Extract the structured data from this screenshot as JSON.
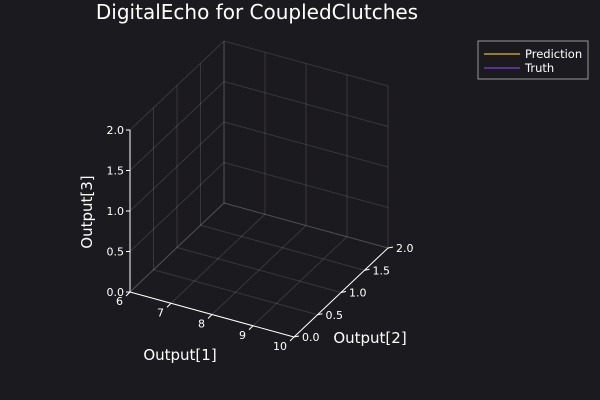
{
  "chart_data": {
    "type": "line",
    "title": "DigitalEcho for CoupledClutches",
    "xlabel": "Output[1]",
    "ylabel": "Output[2]",
    "zlabel": "Output[3]",
    "xlim": [
      6,
      10
    ],
    "ylim": [
      0.0,
      2.0
    ],
    "zlim": [
      0.0,
      2.0
    ],
    "x_ticks": [
      "6",
      "7",
      "8",
      "9",
      "10"
    ],
    "y_ticks": [
      "0.0",
      "0.5",
      "1.0",
      "1.5",
      "2.0"
    ],
    "z_ticks": [
      "0.0",
      "0.5",
      "1.0",
      "1.5",
      "2.0"
    ],
    "legend_position": "top-right",
    "series": [
      {
        "name": "Prediction",
        "color": "#e2b33c",
        "points": []
      },
      {
        "name": "Truth",
        "color": "#7b3fe0",
        "points": []
      }
    ]
  }
}
